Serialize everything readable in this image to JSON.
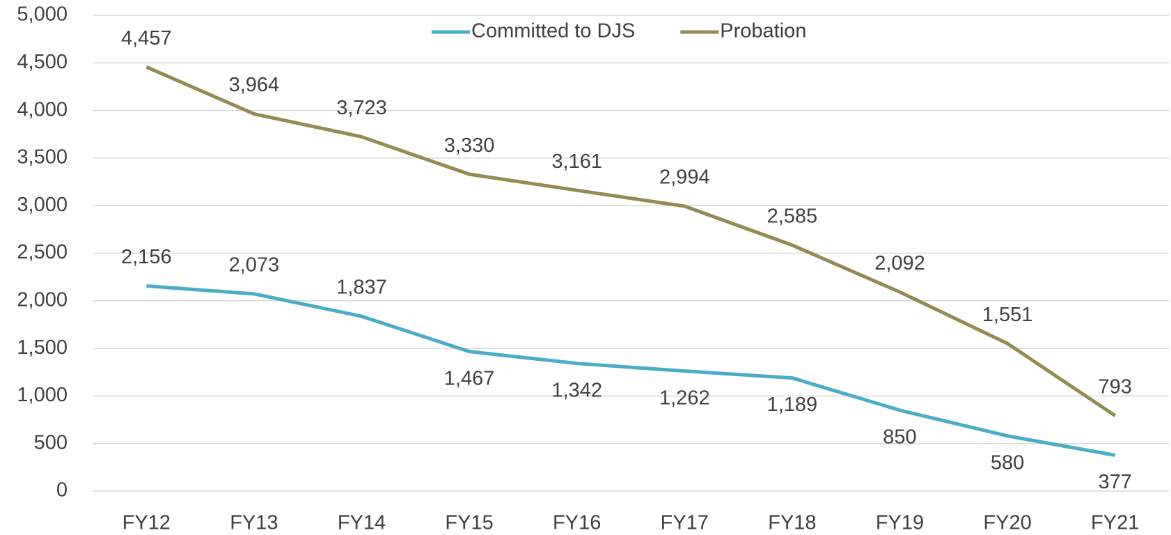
{
  "chart_data": {
    "type": "line",
    "categories": [
      "FY12",
      "FY13",
      "FY14",
      "FY15",
      "FY16",
      "FY17",
      "FY18",
      "FY19",
      "FY20",
      "FY21"
    ],
    "series": [
      {
        "name": "Committed to DJS",
        "color": "#4bacc6",
        "values": [
          2156,
          2073,
          1837,
          1467,
          1342,
          1262,
          1189,
          850,
          580,
          377
        ],
        "value_labels": [
          "2,156",
          "2,073",
          "1,837",
          "1,467",
          "1,342",
          "1,262",
          "1,189",
          "850",
          "580",
          "377"
        ]
      },
      {
        "name": "Probation",
        "color": "#948a54",
        "values": [
          4457,
          3964,
          3723,
          3330,
          3161,
          2994,
          2585,
          2092,
          1551,
          793
        ],
        "value_labels": [
          "4,457",
          "3,964",
          "3,723",
          "3,330",
          "3,161",
          "2,994",
          "2,585",
          "2,092",
          "1,551",
          "793"
        ]
      }
    ],
    "ylim": [
      0,
      5000
    ],
    "yticks": [
      0,
      500,
      {
        "value": 1000,
        "label": "1,000"
      },
      {
        "value": 1500,
        "label": "1,500"
      },
      {
        "value": 2000,
        "label": "2,000"
      },
      {
        "value": 2500,
        "label": "2,500"
      },
      {
        "value": 3000,
        "label": "3,000"
      },
      {
        "value": 3500,
        "label": "3,500"
      },
      {
        "value": 4000,
        "label": "4,000"
      },
      {
        "value": 4500,
        "label": "4,500"
      },
      {
        "value": 5000,
        "label": "5,000"
      }
    ],
    "grid": true,
    "legend": "top"
  }
}
